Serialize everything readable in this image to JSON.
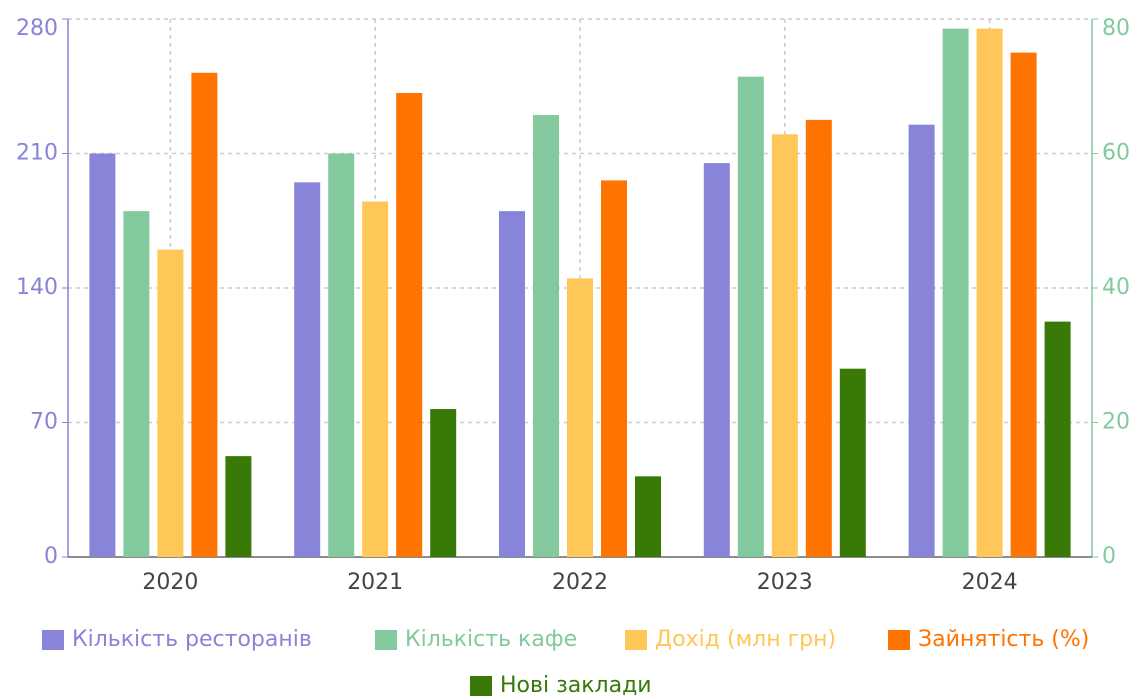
{
  "chart_data": {
    "type": "bar",
    "categories": [
      "2020",
      "2021",
      "2022",
      "2023",
      "2024"
    ],
    "series": [
      {
        "name": "Кількість ресторанів",
        "color": "#8884d8",
        "values": [
          210,
          195,
          180,
          205,
          225
        ]
      },
      {
        "name": "Кількість кафе",
        "color": "#82ca9d",
        "values": [
          180,
          210,
          230,
          250,
          275
        ]
      },
      {
        "name": "Дохід (млн грн)",
        "color": "#ffc658",
        "values": [
          160,
          185,
          145,
          220,
          275
        ]
      },
      {
        "name": "Зайнятість (%)",
        "color": "#ff7300",
        "axis": "y2",
        "values": [
          72,
          69,
          56,
          65,
          75
        ]
      },
      {
        "name": "Нові заклади",
        "color": "#387908",
        "axis": "y2",
        "values": [
          15,
          22,
          12,
          28,
          35
        ]
      }
    ],
    "ylim": [
      0,
      280
    ],
    "yticks": [
      0,
      70,
      140,
      210,
      280
    ],
    "ycolor": "#8884d8",
    "y2lim": [
      0,
      80
    ],
    "y2ticks": [
      0,
      20,
      40,
      60,
      80
    ],
    "y2color": "#82ca9d",
    "grid": true
  }
}
